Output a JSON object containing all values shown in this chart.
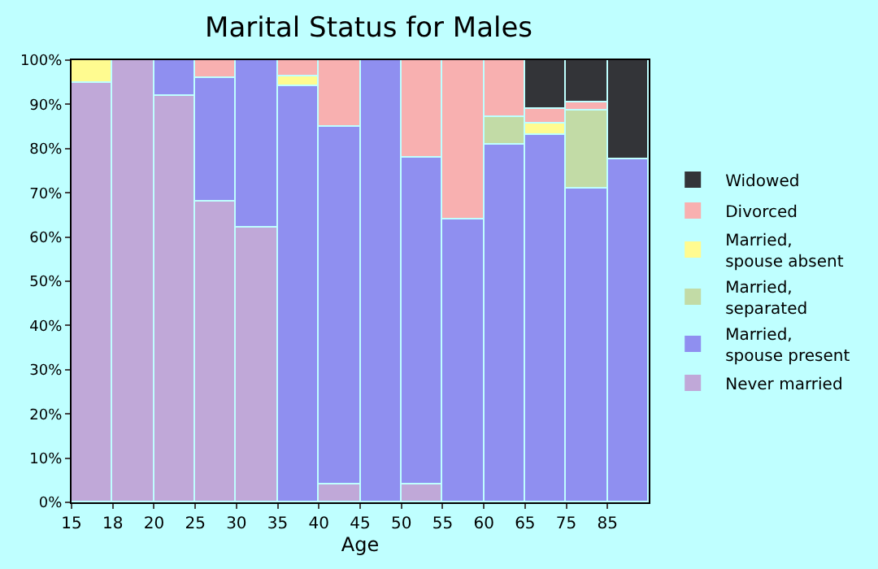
{
  "chart_data": {
    "type": "bar",
    "stacked": true,
    "title": "Marital Status for Males",
    "xlabel": "Age",
    "categories": [
      "15",
      "18",
      "20",
      "25",
      "30",
      "35",
      "40",
      "45",
      "50",
      "55",
      "60",
      "65",
      "75",
      "85"
    ],
    "ylim": [
      0,
      100
    ],
    "yticks": [
      {
        "value": 0,
        "label": "0%"
      },
      {
        "value": 10,
        "label": "10%"
      },
      {
        "value": 20,
        "label": "20%"
      },
      {
        "value": 30,
        "label": "30%"
      },
      {
        "value": 40,
        "label": "40%"
      },
      {
        "value": 50,
        "label": "50%"
      },
      {
        "value": 60,
        "label": "60%"
      },
      {
        "value": 70,
        "label": "70%"
      },
      {
        "value": 80,
        "label": "80%"
      },
      {
        "value": 90,
        "label": "90%"
      },
      {
        "value": 100,
        "label": "100%"
      }
    ],
    "legend": "right",
    "series": [
      {
        "name": "Never married",
        "color": "#c0a8d8",
        "values": [
          95,
          100,
          92,
          68,
          62,
          null,
          4,
          null,
          4,
          null,
          null,
          null,
          null,
          null
        ]
      },
      {
        "name": "Married, spouse present",
        "color": "#8f8ff0",
        "values": [
          null,
          null,
          8,
          28,
          38,
          94,
          81,
          100,
          74,
          64,
          81,
          83,
          71,
          77.5
        ]
      },
      {
        "name": "Married, separated",
        "color": "#c2dba6",
        "values": [
          null,
          null,
          null,
          null,
          null,
          null,
          null,
          null,
          null,
          null,
          6,
          null,
          17.5,
          null
        ]
      },
      {
        "name": "Married, spouse absent",
        "color": "#fffb90",
        "values": [
          5,
          null,
          null,
          null,
          null,
          2.5,
          null,
          null,
          null,
          null,
          null,
          2.5,
          null,
          null
        ]
      },
      {
        "name": "Divorced",
        "color": "#f8b0b0",
        "values": [
          null,
          null,
          null,
          4,
          null,
          3.5,
          15,
          null,
          22,
          36,
          13,
          3.5,
          2,
          null
        ]
      },
      {
        "name": "Widowed",
        "color": "#333438",
        "values": [
          null,
          null,
          null,
          null,
          null,
          null,
          null,
          null,
          null,
          null,
          null,
          11,
          9.5,
          22.5
        ]
      }
    ]
  }
}
